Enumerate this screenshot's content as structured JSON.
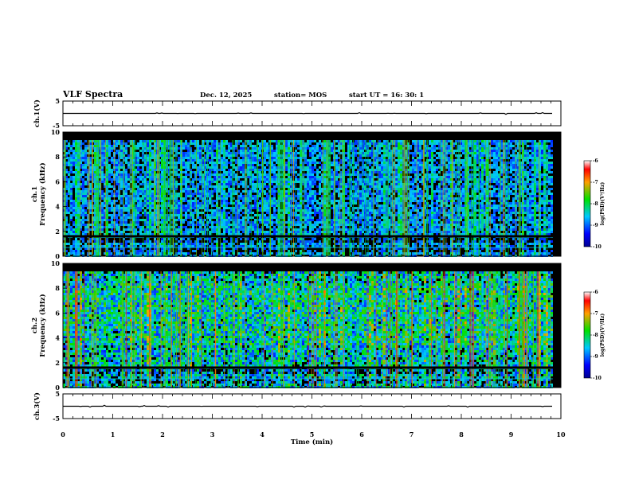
{
  "header": {
    "title": "VLF Spectra",
    "date": "Dec. 12, 2025",
    "station": "station= MOS",
    "start": "start  UT  =    16: 30: 1"
  },
  "chart_data": [
    {
      "type": "line",
      "name": "ch1-voltage",
      "ylabel": "ch.1(V)",
      "ylim": [
        -5,
        5
      ],
      "yticks": [
        "5",
        "-5"
      ],
      "trace_level": 0
    },
    {
      "type": "heatmap",
      "name": "ch1-spectrogram",
      "ylabel_line1": "ch.1",
      "ylabel_line2": "Frequency (kHz)",
      "ylim": [
        0,
        10
      ],
      "yticks": [
        "0",
        "2",
        "4",
        "6",
        "8",
        "10"
      ],
      "colorbar": {
        "label": "log(PSD)(V²/Hz)",
        "ticks": [
          "-6",
          "-7",
          "-8",
          "-9",
          "-10"
        ],
        "range": [
          -10,
          -6
        ]
      }
    },
    {
      "type": "heatmap",
      "name": "ch2-spectrogram",
      "ylabel_line1": "ch.2",
      "ylabel_line2": "Frequency (kHz)",
      "ylim": [
        0,
        10
      ],
      "yticks": [
        "0",
        "2",
        "4",
        "6",
        "8",
        "10"
      ],
      "colorbar": {
        "label": "log(PSD)(V²/Hz)",
        "ticks": [
          "-6",
          "-7",
          "-8",
          "-9",
          "-10"
        ],
        "range": [
          -10,
          -6
        ]
      }
    },
    {
      "type": "line",
      "name": "ch3-voltage",
      "ylabel": "ch.3(V)",
      "ylim": [
        -5,
        5
      ],
      "yticks": [
        "5",
        "-5"
      ],
      "trace_level": 0
    }
  ],
  "xaxis": {
    "label": "Time  (min)",
    "range": [
      0,
      10
    ],
    "ticks": [
      "0",
      "1",
      "2",
      "3",
      "4",
      "5",
      "6",
      "7",
      "8",
      "9",
      "10"
    ]
  }
}
